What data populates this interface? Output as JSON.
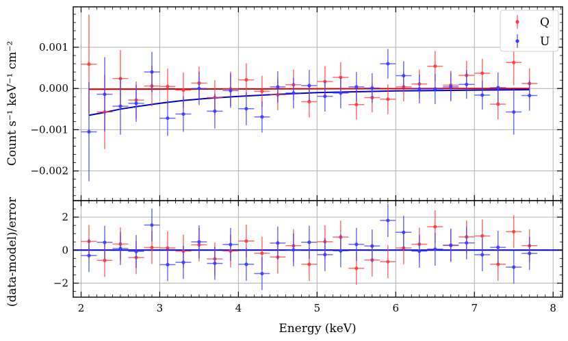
{
  "chart_data": [
    {
      "type": "scatter",
      "panel": "top",
      "xlabel": "",
      "ylabel": "Count s⁻¹ keV⁻¹ cm⁻²",
      "xlim": [
        1.9,
        8.12
      ],
      "ylim": [
        -0.00272,
        0.00198
      ],
      "x_ticks": [
        2,
        3,
        4,
        5,
        6,
        7,
        8
      ],
      "y_ticks": [
        -0.002,
        -0.001,
        0.0,
        0.001
      ],
      "y_tick_labels": [
        "−0.002",
        "−0.001",
        "0.000",
        "0.001"
      ],
      "grid": true,
      "legend_position": "top-right",
      "series": [
        {
          "name": "Q",
          "color": "#ff3b3b",
          "x": [
            2.1,
            2.3,
            2.5,
            2.7,
            2.9,
            3.1,
            3.3,
            3.5,
            3.7,
            3.9,
            4.1,
            4.3,
            4.5,
            4.7,
            4.9,
            5.1,
            5.3,
            5.5,
            5.7,
            5.9,
            6.1,
            6.3,
            6.5,
            6.7,
            6.9,
            7.1,
            7.3,
            7.5,
            7.7
          ],
          "y": [
            0.00059,
            -0.00057,
            0.00024,
            -0.00028,
            6e-05,
            5e-05,
            -4e-05,
            0.00013,
            -0.00022,
            -1e-05,
            0.00021,
            -7e-05,
            -0.00015,
            9e-05,
            -0.00032,
            0.00017,
            0.00027,
            -0.00039,
            -0.00022,
            -0.00026,
            4e-05,
            0.00011,
            0.00054,
            8e-05,
            0.00032,
            0.00037,
            -0.00038,
            0.00063,
            0.00012
          ],
          "yerr": [
            0.0012,
            0.0009,
            0.00069,
            0.00045,
            0.00049,
            0.00043,
            0.00043,
            0.0004,
            0.00042,
            0.00042,
            0.0004,
            0.00038,
            0.00038,
            0.00037,
            0.00038,
            0.00037,
            0.00037,
            0.00036,
            0.00036,
            0.00036,
            0.00035,
            0.00035,
            0.00037,
            0.00035,
            0.00035,
            0.00035,
            0.00037,
            0.00055,
            0.00037
          ]
        },
        {
          "name": "U",
          "color": "#3b3bff",
          "x": [
            2.1,
            2.3,
            2.5,
            2.7,
            2.9,
            3.1,
            3.3,
            3.5,
            3.7,
            3.9,
            4.1,
            4.3,
            4.5,
            4.7,
            4.9,
            5.1,
            5.3,
            5.5,
            5.7,
            5.9,
            6.1,
            6.3,
            6.5,
            6.7,
            6.9,
            7.1,
            7.3,
            7.5,
            7.7
          ],
          "y": [
            -0.00105,
            -0.00014,
            -0.00043,
            -0.00036,
            0.0004,
            -0.00072,
            -0.00062,
            0.0,
            -0.00055,
            -5e-05,
            -0.00049,
            -0.00069,
            4e-05,
            -0.00011,
            7e-05,
            -0.00019,
            -0.00011,
            4e-05,
            1e-05,
            0.0006,
            0.00031,
            -1e-05,
            -1e-05,
            4e-05,
            0.0001,
            -0.00016,
            2e-05,
            -0.00057,
            -0.00017
          ]
        },
        {
          "name": "",
          "kind": "model",
          "color": "#d00000",
          "x": [
            2.1,
            2.5,
            3.0,
            3.5,
            4.0,
            4.5,
            5.0,
            5.5,
            6.0,
            6.5,
            7.0,
            7.5,
            7.7
          ],
          "y": [
            -2e-05,
            -1.8e-05,
            -1.5e-05,
            -1.3e-05,
            -1.1e-05,
            -9e-06,
            -7e-06,
            -5e-06,
            -4e-06,
            -2e-06,
            -1e-06,
            0.0,
            0.0
          ]
        },
        {
          "name": "",
          "kind": "model",
          "color": "#0000cc",
          "x": [
            2.1,
            2.3,
            2.5,
            2.7,
            3.0,
            3.3,
            3.6,
            4.0,
            4.5,
            5.0,
            5.5,
            6.0,
            6.5,
            7.0,
            7.7
          ],
          "y": [
            -0.00065,
            -0.00058,
            -0.0005,
            -0.00044,
            -0.00036,
            -0.00029,
            -0.00024,
            -0.00019,
            -0.00014,
            -0.0001,
            -8e-05,
            -6e-05,
            -5e-05,
            -4e-05,
            -3e-05
          ]
        }
      ]
    },
    {
      "type": "scatter",
      "panel": "bottom",
      "xlabel": "Energy (keV)",
      "ylabel": "(data-model)/error",
      "xlim": [
        1.9,
        8.12
      ],
      "ylim": [
        -2.85,
        3.0
      ],
      "x_ticks": [
        2,
        3,
        4,
        5,
        6,
        7,
        8
      ],
      "x_tick_labels": [
        "2",
        "3",
        "4",
        "5",
        "6",
        "7",
        "8"
      ],
      "y_ticks": [
        -2,
        0,
        2
      ],
      "y_tick_labels": [
        "−2",
        "0",
        "2"
      ],
      "grid": true,
      "reference_line": 0,
      "series": [
        {
          "name": "",
          "color": "#ff3b3b",
          "x": [
            2.1,
            2.3,
            2.5,
            2.7,
            2.9,
            3.1,
            3.3,
            3.5,
            3.7,
            3.9,
            4.1,
            4.3,
            4.5,
            4.7,
            4.9,
            5.1,
            5.3,
            5.5,
            5.7,
            5.9,
            6.1,
            6.3,
            6.5,
            6.7,
            6.9,
            7.1,
            7.3,
            7.5,
            7.7
          ],
          "y": [
            0.53,
            -0.62,
            0.37,
            -0.45,
            0.16,
            0.13,
            -0.06,
            0.32,
            -0.53,
            -0.05,
            0.55,
            -0.19,
            -0.42,
            0.27,
            -0.86,
            0.51,
            0.79,
            -1.1,
            -0.6,
            -0.7,
            0.13,
            0.36,
            1.42,
            0.28,
            0.8,
            0.86,
            -0.86,
            1.12,
            0.27
          ]
        },
        {
          "name": "",
          "color": "#3b3bff",
          "x": [
            2.1,
            2.3,
            2.5,
            2.7,
            2.9,
            3.1,
            3.3,
            3.5,
            3.7,
            3.9,
            4.1,
            4.3,
            4.5,
            4.7,
            4.9,
            5.1,
            5.3,
            5.5,
            5.7,
            5.9,
            6.1,
            6.3,
            6.5,
            6.7,
            6.9,
            7.1,
            7.3,
            7.5,
            7.7
          ],
          "y": [
            -0.33,
            0.47,
            0.1,
            -0.08,
            1.52,
            -0.88,
            -0.74,
            0.5,
            -0.8,
            0.34,
            -0.86,
            -1.42,
            0.43,
            0.02,
            0.48,
            -0.27,
            -0.04,
            0.35,
            0.25,
            1.8,
            1.08,
            -0.06,
            0.06,
            0.3,
            0.44,
            -0.28,
            0.17,
            -1.03,
            -0.2
          ]
        }
      ]
    }
  ]
}
